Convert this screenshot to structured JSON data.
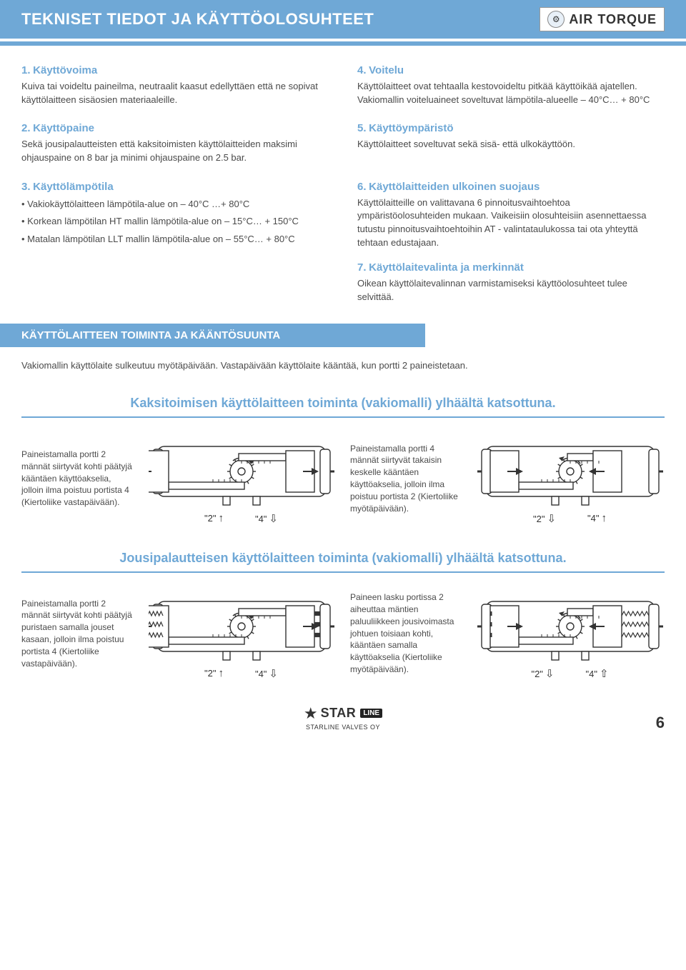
{
  "header": {
    "title": "TEKNISET TIEDOT JA KÄYTTÖOLOSUHTEET",
    "logo_text": "AIR TORQUE"
  },
  "specs": [
    {
      "num": "1.",
      "title": "Käyttövoima",
      "body": "Kuiva tai voideltu paineilma, neutraalit kaasut edellyttäen että ne sopivat käyttölaitteen sisäosien materiaaleille."
    },
    {
      "num": "4.",
      "title": "Voitelu",
      "body": "Käyttölaitteet ovat tehtaalla kestovoideltu pitkää käyttöikää ajatellen. Vakiomallin voiteluaineet soveltuvat lämpötila-alueelle – 40°C… + 80°C"
    },
    {
      "num": "2.",
      "title": "Käyttöpaine",
      "body": "Sekä jousipalautteisten että kaksitoimisten käyttölaitteiden maksimi ohjauspaine on 8 bar ja minimi ohjauspaine on 2.5 bar."
    },
    {
      "num": "5.",
      "title": "Käyttöympäristö",
      "body": "Käyttölaitteet soveltuvat sekä sisä- että ulkokäyttöön."
    },
    {
      "num": "3.",
      "title": "Käyttölämpötila",
      "bullets": [
        "• Vakiokäyttölaitteen lämpötila-alue on – 40°C …+ 80°C",
        "• Korkean lämpötilan HT mallin lämpötila-alue on – 15°C… + 150°C",
        "• Matalan lämpötilan LLT mallin lämpötila-alue on – 55°C… + 80°C"
      ]
    },
    {
      "items": [
        {
          "num": "6.",
          "title": "Käyttölaitteiden ulkoinen suojaus",
          "body": "Käyttölaitteille on valittavana 6 pinnoitusvaihtoehtoa ympäristöolosuhteiden mukaan. Vaikeisiin olosuhteisiin asennettaessa tutustu pinnoitusvaihtoehtoihin AT - valintataulukossa tai ota yhteyttä tehtaan edustajaan."
        },
        {
          "num": "7.",
          "title": "Käyttölaitevalinta ja merkinnät",
          "body": "Oikean käyttölaitevalinnan varmistamiseksi käyttöolosuhteet tulee selvittää."
        }
      ]
    }
  ],
  "sub_header": "KÄYTTÖLAITTEEN TOIMINTA JA KÄÄNTÖSUUNTA",
  "intro": "Vakiomallin käyttölaite sulkeutuu myötäpäivään. Vastapäivään käyttölaite kääntää, kun portti 2 paineistetaan.",
  "operations": [
    {
      "title": "Kaksitoimisen käyttölaitteen toiminta (vakiomalli) ylhäältä katsottuna.",
      "left": {
        "desc": "Paineistamalla portti 2 männät siirtyvät kohti päätyjä kääntäen käyttöakselia, jolloin ilma poistuu portista 4 (Kiertoliike vastapäivään).",
        "port2_dir": "up",
        "port4_dir": "down-open",
        "type": "double",
        "piston_pos": "out"
      },
      "right": {
        "desc": "Paineistamalla portti 4 männät siirtyvät takaisin keskelle kääntäen käyttöakselia, jolloin ilma poistuu portista 2 (Kiertoliike myötäpäivään).",
        "port2_dir": "down-open",
        "port4_dir": "up",
        "type": "double",
        "piston_pos": "in"
      }
    },
    {
      "title": "Jousipalautteisen käyttölaitteen toiminta (vakiomalli) ylhäältä katsottuna.",
      "left": {
        "desc": "Paineistamalla portti 2 männät siirtyvät kohti päätyjä puristaen samalla jouset kasaan, jolloin ilma poistuu portista 4 (Kiertoliike vastapäivään).",
        "port2_dir": "up",
        "port4_dir": "down-open",
        "type": "spring",
        "piston_pos": "out"
      },
      "right": {
        "desc": "Paineen lasku portissa 2 aiheuttaa mäntien paluuliikkeen jousivoimasta johtuen toisiaan kohti, kääntäen samalla käyttöakselia (Kiertoliike myötäpäivään).",
        "port2_dir": "down-open",
        "port4_dir": "up-open",
        "type": "spring",
        "piston_pos": "in"
      }
    }
  ],
  "port_labels": {
    "p2": "\"2\"",
    "p4": "\"4\""
  },
  "footer": {
    "brand": "STAR",
    "line": "LINE",
    "sub": "STARLINE VALVES OY"
  },
  "page_number": "6",
  "colors": {
    "accent": "#6fa8d6",
    "text": "#4a4a4a",
    "white": "#ffffff",
    "diagram_stroke": "#333333"
  },
  "diagram_style": {
    "stroke_width": 1.4,
    "body_fill": "#ffffff",
    "gear_fill": "#ffffff"
  }
}
